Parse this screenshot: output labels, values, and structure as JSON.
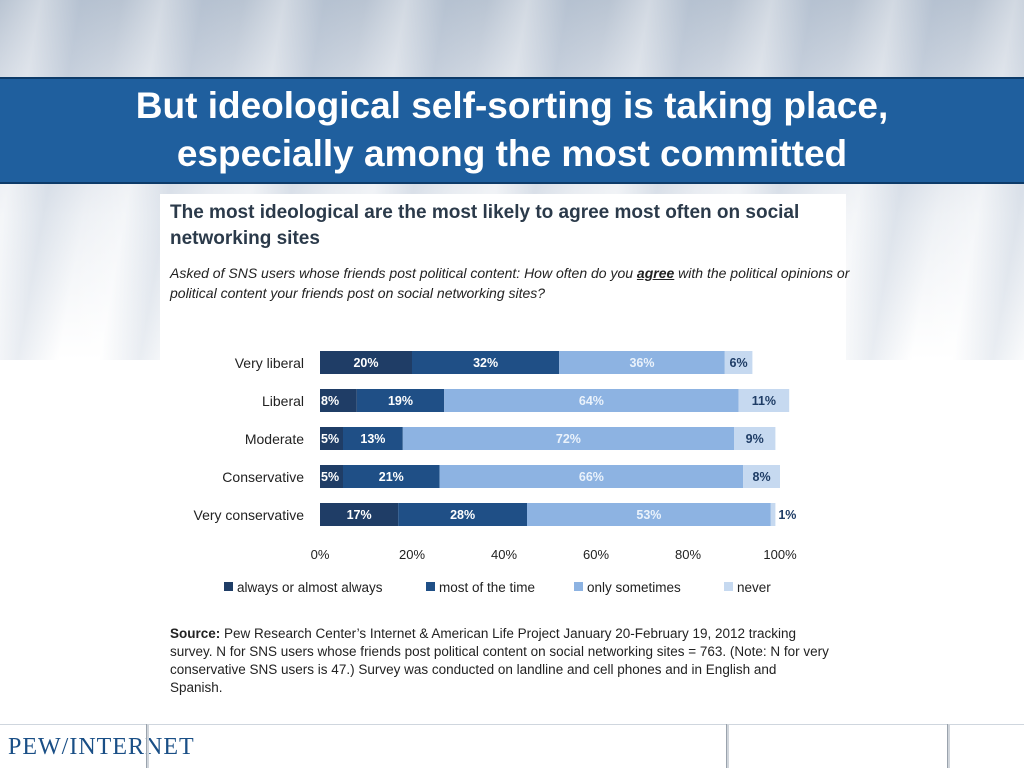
{
  "slide": {
    "title": "But ideological self-sorting is taking place,\nespecially among the most committed",
    "logo_text": "PEW/INTERNET"
  },
  "chart_data": {
    "type": "bar",
    "orientation": "horizontal",
    "stacked": true,
    "title": "The most ideological are the most likely to agree most often on social networking sites",
    "subtitle_before": "Asked of SNS users whose friends post political content: How often do you ",
    "subtitle_emph": "agree",
    "subtitle_after": " with the political opinions or political content your friends post on social networking sites?",
    "categories": [
      "Very liberal",
      "Liberal",
      "Moderate",
      "Conservative",
      "Very conservative"
    ],
    "series": [
      {
        "name": "always or almost always",
        "values": [
          20,
          8,
          5,
          5,
          17
        ],
        "color": "#1f3d66",
        "labels": [
          "20%",
          "8%",
          "5%",
          "5%",
          "17%"
        ]
      },
      {
        "name": "most of the time",
        "values": [
          32,
          19,
          13,
          21,
          28
        ],
        "color": "#1f4f86",
        "labels": [
          "32%",
          "19%",
          "13%",
          "21%",
          "28%"
        ]
      },
      {
        "name": "only sometimes",
        "values": [
          36,
          64,
          72,
          66,
          53
        ],
        "color": "#8db3e2",
        "labels": [
          "36%",
          "64%",
          "72%",
          "66%",
          "53%"
        ]
      },
      {
        "name": "never",
        "values": [
          6,
          11,
          9,
          8,
          1
        ],
        "color": "#c6d9f0",
        "labels": [
          "6%",
          "11%",
          "9%",
          "8%",
          "1%"
        ]
      }
    ],
    "xlim": [
      0,
      100
    ],
    "xticks": [
      "0%",
      "20%",
      "40%",
      "60%",
      "80%",
      "100%"
    ],
    "legend_position": "bottom",
    "grid": false
  },
  "source": {
    "label": "Source:",
    "text": " Pew Research Center’s Internet & American Life Project January 20-February 19, 2012 tracking survey. N for SNS users whose friends post political content on social networking sites = 763. (Note: N for very conservative SNS users is 47.) Survey was conducted on landline and cell phones and in English and Spanish."
  }
}
